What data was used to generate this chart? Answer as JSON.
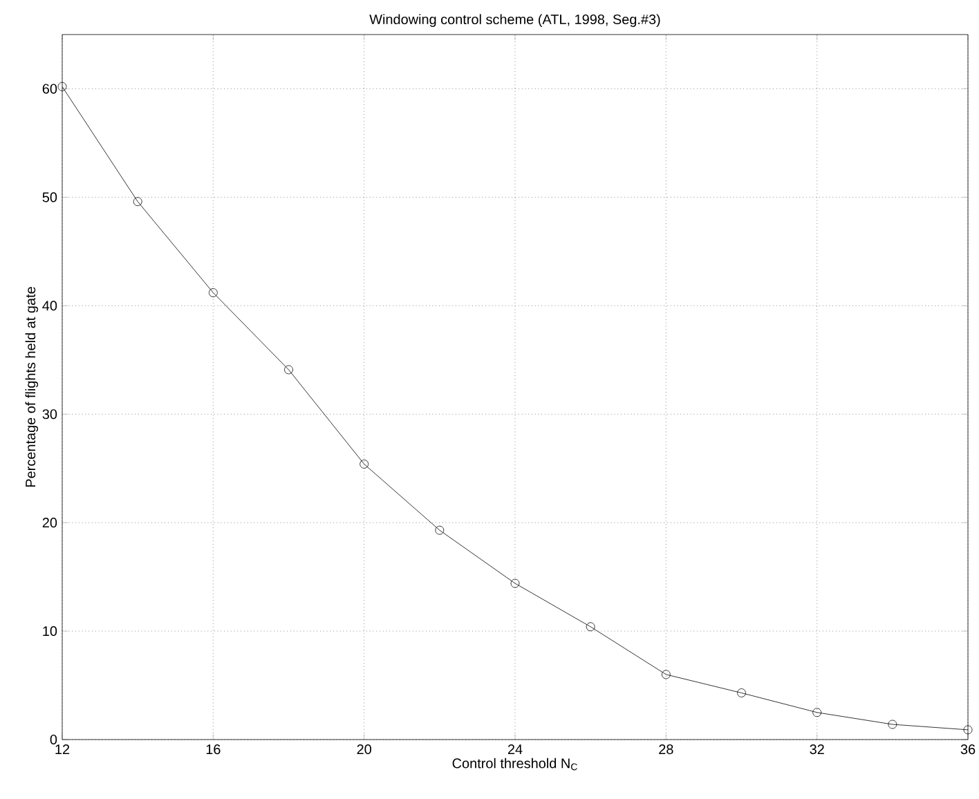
{
  "chart_data": {
    "type": "line",
    "title": "Windowing control scheme (ATL, 1998, Seg.#3)",
    "xlabel": "Control threshold N$_{C}$",
    "ylabel": "Percentage of flights held at gate",
    "x": [
      12,
      14,
      16,
      18,
      20,
      22,
      24,
      26,
      28,
      30,
      32,
      34,
      36
    ],
    "series": [
      {
        "color": "#000000",
        "values": [
          60.2,
          49.6,
          41.2,
          34.1,
          25.4,
          19.3,
          14.4,
          10.4,
          6.0,
          4.3,
          2.5,
          1.4,
          0.9
        ]
      }
    ],
    "xlim": [
      12,
      36
    ],
    "ylim": [
      0,
      65
    ],
    "xticks": [
      12,
      16,
      20,
      24,
      28,
      32,
      36
    ],
    "yticks": [
      0,
      10,
      20,
      30,
      40,
      50,
      60
    ],
    "grid": true,
    "marker": "circle",
    "line_style": "solid"
  }
}
